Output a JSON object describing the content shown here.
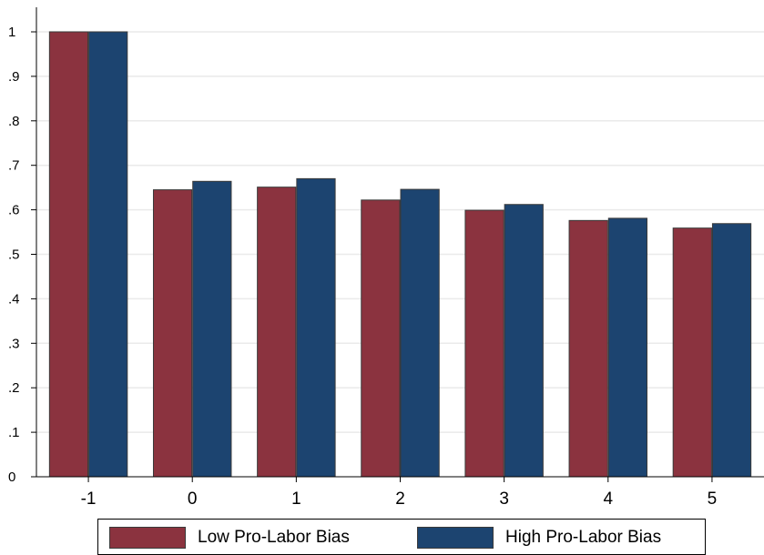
{
  "chart_data": {
    "type": "bar",
    "title": "",
    "xlabel": "",
    "ylabel": "",
    "categories": [
      "-1",
      "0",
      "1",
      "2",
      "3",
      "4",
      "5"
    ],
    "ylim": [
      0,
      1
    ],
    "yticks": [
      "0",
      ".1",
      ".2",
      ".3",
      ".4",
      ".5",
      ".6",
      ".7",
      ".8",
      ".9",
      "1"
    ],
    "grid": true,
    "legend_position": "bottom",
    "series": [
      {
        "name": "Low Pro-Labor Bias",
        "color": "#8b333f",
        "values": [
          1.0,
          0.645,
          0.651,
          0.622,
          0.599,
          0.576,
          0.559
        ]
      },
      {
        "name": "High Pro-Labor Bias",
        "color": "#1c4470",
        "values": [
          1.0,
          0.664,
          0.67,
          0.646,
          0.612,
          0.581,
          0.569
        ]
      }
    ]
  }
}
